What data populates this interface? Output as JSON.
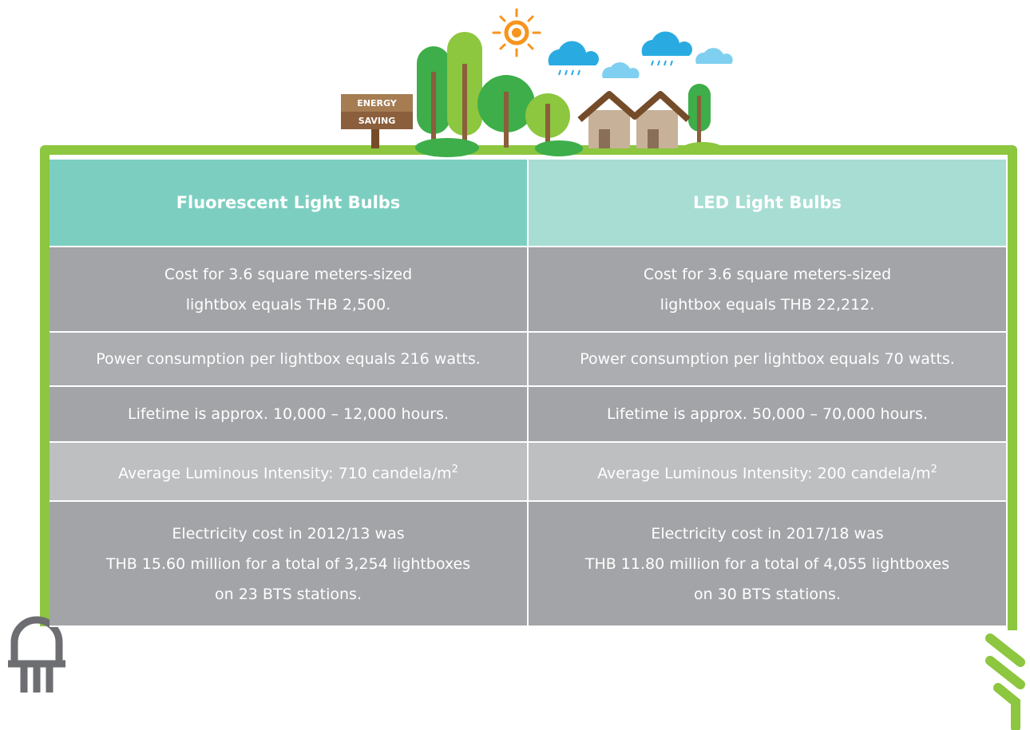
{
  "sign": [
    "ENERGY",
    "SAVING"
  ],
  "table": {
    "header": [
      "Fluorescent Light Bulbs",
      "LED Light Bulbs"
    ],
    "rows": [
      [
        {
          "lines": [
            "Cost for 3.6 square meters-sized",
            "lightbox equals THB 2,500."
          ]
        },
        {
          "lines": [
            "Cost for 3.6 square meters-sized",
            "lightbox equals THB 22,212."
          ]
        }
      ],
      [
        {
          "lines": [
            "Power consumption per lightbox equals 216 watts."
          ]
        },
        {
          "lines": [
            "Power consumption per lightbox equals 70 watts."
          ]
        }
      ],
      [
        {
          "lines": [
            "Lifetime is approx. 10,000 – 12,000 hours."
          ]
        },
        {
          "lines": [
            "Lifetime is approx. 50,000 – 70,000 hours."
          ]
        }
      ],
      [
        {
          "lines": [
            "Average Luminous Intensity: 710 candela/m"
          ],
          "sup": "2"
        },
        {
          "lines": [
            "Average Luminous Intensity: 200 candela/m"
          ],
          "sup": "2"
        }
      ],
      [
        {
          "lines": [
            "Electricity cost in 2012/13 was",
            "THB 15.60 million for a total of 3,254 lightboxes",
            "on 23 BTS stations."
          ]
        },
        {
          "lines": [
            "Electricity cost in 2017/18 was",
            "THB 11.80 million for a total of 4,055 lightboxes",
            "on 30 BTS stations."
          ]
        }
      ]
    ]
  }
}
